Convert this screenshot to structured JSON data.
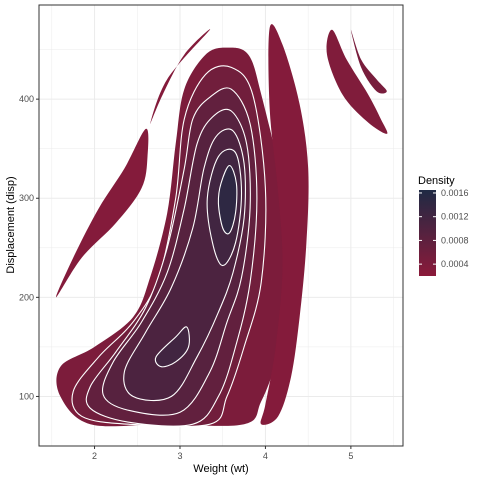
{
  "chart_data": {
    "type": "density-contour",
    "title": "",
    "xlabel": "Weight (wt)",
    "ylabel": "Displacement (disp)",
    "xlim": [
      1.35,
      5.61
    ],
    "ylim": [
      50,
      495
    ],
    "xticks": [
      2,
      3,
      4,
      5
    ],
    "yticks": [
      100,
      200,
      300,
      400
    ],
    "grid": true,
    "legend": {
      "title": "Density",
      "position": "right",
      "ticks": [
        "0.0016",
        "0.0012",
        "0.0008",
        "0.0004"
      ],
      "tick_values": [
        0.0016,
        0.0012,
        0.0008,
        0.0004
      ],
      "range": [
        0.0002,
        0.00165
      ]
    },
    "colors": {
      "low": "#8b1a3a",
      "high": "#1f2a44",
      "contour_line": "#ffffff",
      "panel_border": "#333333",
      "grid": "#ebebeb"
    },
    "peaks": [
      {
        "x": 3.6,
        "y": 305,
        "density": 0.0016
      },
      {
        "x": 2.95,
        "y": 145,
        "density": 0.0011
      }
    ],
    "regions": [
      {
        "name": "main",
        "density": 0.0004,
        "points": [
          [
            3.3,
            445
          ],
          [
            3.55,
            452
          ],
          [
            3.8,
            445
          ],
          [
            3.95,
            405
          ],
          [
            4.2,
            310
          ],
          [
            4.35,
            200
          ],
          [
            4.15,
            140
          ],
          [
            3.95,
            95
          ],
          [
            3.75,
            72
          ],
          [
            2.8,
            72
          ],
          [
            1.95,
            72
          ],
          [
            1.6,
            100
          ],
          [
            1.6,
            130
          ],
          [
            2.0,
            150
          ],
          [
            2.45,
            180
          ],
          [
            2.65,
            220
          ],
          [
            2.85,
            285
          ],
          [
            2.95,
            355
          ],
          [
            3.05,
            410
          ]
        ]
      },
      {
        "name": "upper-left-sliver",
        "density": 0.0003,
        "points": [
          [
            1.55,
            200
          ],
          [
            1.85,
            240
          ],
          [
            2.25,
            275
          ],
          [
            2.55,
            310
          ],
          [
            2.62,
            342
          ],
          [
            2.6,
            370
          ],
          [
            2.35,
            330
          ],
          [
            2.05,
            290
          ],
          [
            1.75,
            240
          ]
        ]
      },
      {
        "name": "top-small-sliver",
        "density": 0.0003,
        "points": [
          [
            2.65,
            375
          ],
          [
            2.85,
            420
          ],
          [
            3.35,
            470
          ],
          [
            3.05,
            445
          ],
          [
            2.8,
            405
          ]
        ]
      },
      {
        "name": "right-blade",
        "density": 0.0003,
        "points": [
          [
            4.05,
            472
          ],
          [
            4.2,
            455
          ],
          [
            4.4,
            395
          ],
          [
            4.5,
            330
          ],
          [
            4.48,
            255
          ],
          [
            4.4,
            180
          ],
          [
            4.3,
            120
          ],
          [
            4.15,
            80
          ],
          [
            3.95,
            72
          ],
          [
            4.0,
            92
          ],
          [
            4.12,
            150
          ],
          [
            4.2,
            230
          ],
          [
            4.15,
            305
          ],
          [
            4.05,
            390
          ]
        ]
      },
      {
        "name": "far-right-outer",
        "density": 0.00035,
        "points": [
          [
            4.78,
            470
          ],
          [
            4.95,
            440
          ],
          [
            5.2,
            405
          ],
          [
            5.35,
            380
          ],
          [
            5.42,
            365
          ],
          [
            5.18,
            378
          ],
          [
            4.9,
            405
          ],
          [
            4.72,
            445
          ]
        ]
      },
      {
        "name": "far-right-inner",
        "density": 0.00045,
        "points": [
          [
            5.0,
            470
          ],
          [
            5.12,
            440
          ],
          [
            5.3,
            420
          ],
          [
            5.42,
            408
          ],
          [
            5.3,
            408
          ],
          [
            5.12,
            432
          ]
        ]
      }
    ],
    "contour_bands": [
      {
        "density": 0.00055,
        "points": [
          [
            3.3,
            425
          ],
          [
            3.6,
            432
          ],
          [
            3.85,
            405
          ],
          [
            4.0,
            310
          ],
          [
            3.95,
            215
          ],
          [
            3.75,
            150
          ],
          [
            3.55,
            100
          ],
          [
            3.35,
            72
          ],
          [
            2.4,
            72
          ],
          [
            1.85,
            80
          ],
          [
            1.75,
            105
          ],
          [
            2.05,
            140
          ],
          [
            2.45,
            175
          ],
          [
            2.75,
            220
          ],
          [
            2.95,
            300
          ],
          [
            3.05,
            380
          ]
        ]
      },
      {
        "density": 0.00075,
        "points": [
          [
            3.35,
            402
          ],
          [
            3.6,
            410
          ],
          [
            3.82,
            375
          ],
          [
            3.9,
            300
          ],
          [
            3.82,
            215
          ],
          [
            3.65,
            150
          ],
          [
            3.45,
            100
          ],
          [
            3.15,
            72
          ],
          [
            2.4,
            74
          ],
          [
            1.95,
            88
          ],
          [
            1.95,
            110
          ],
          [
            2.25,
            145
          ],
          [
            2.6,
            190
          ],
          [
            2.85,
            250
          ],
          [
            3.05,
            330
          ],
          [
            3.15,
            380
          ]
        ]
      },
      {
        "density": 0.0009,
        "points": [
          [
            3.38,
            382
          ],
          [
            3.6,
            388
          ],
          [
            3.78,
            355
          ],
          [
            3.82,
            290
          ],
          [
            3.72,
            220
          ],
          [
            3.55,
            175
          ],
          [
            3.35,
            125
          ],
          [
            3.0,
            84
          ],
          [
            2.4,
            86
          ],
          [
            2.1,
            102
          ],
          [
            2.22,
            135
          ],
          [
            2.55,
            175
          ],
          [
            2.85,
            225
          ],
          [
            3.05,
            290
          ],
          [
            3.2,
            355
          ]
        ]
      },
      {
        "density": 0.00105,
        "points": [
          [
            3.42,
            362
          ],
          [
            3.62,
            368
          ],
          [
            3.75,
            335
          ],
          [
            3.75,
            280
          ],
          [
            3.62,
            225
          ],
          [
            3.45,
            185
          ],
          [
            3.2,
            140
          ],
          [
            2.9,
            100
          ],
          [
            2.45,
            100
          ],
          [
            2.35,
            125
          ],
          [
            2.6,
            165
          ],
          [
            2.9,
            210
          ],
          [
            3.15,
            270
          ],
          [
            3.28,
            330
          ]
        ]
      },
      {
        "density": 0.0012,
        "points": [
          [
            3.45,
            342
          ],
          [
            3.65,
            346
          ],
          [
            3.72,
            305
          ],
          [
            3.65,
            255
          ],
          [
            3.5,
            232
          ],
          [
            3.38,
            255
          ],
          [
            3.32,
            300
          ]
        ]
      },
      {
        "density": 0.0012,
        "points": [
          [
            2.72,
            140
          ],
          [
            2.95,
            160
          ],
          [
            3.08,
            170
          ],
          [
            3.1,
            150
          ],
          [
            2.95,
            135
          ],
          [
            2.78,
            130
          ]
        ]
      },
      {
        "density": 0.00145,
        "points": [
          [
            3.48,
            315
          ],
          [
            3.58,
            333
          ],
          [
            3.66,
            315
          ],
          [
            3.65,
            285
          ],
          [
            3.58,
            265
          ],
          [
            3.5,
            270
          ],
          [
            3.45,
            295
          ]
        ]
      }
    ]
  }
}
